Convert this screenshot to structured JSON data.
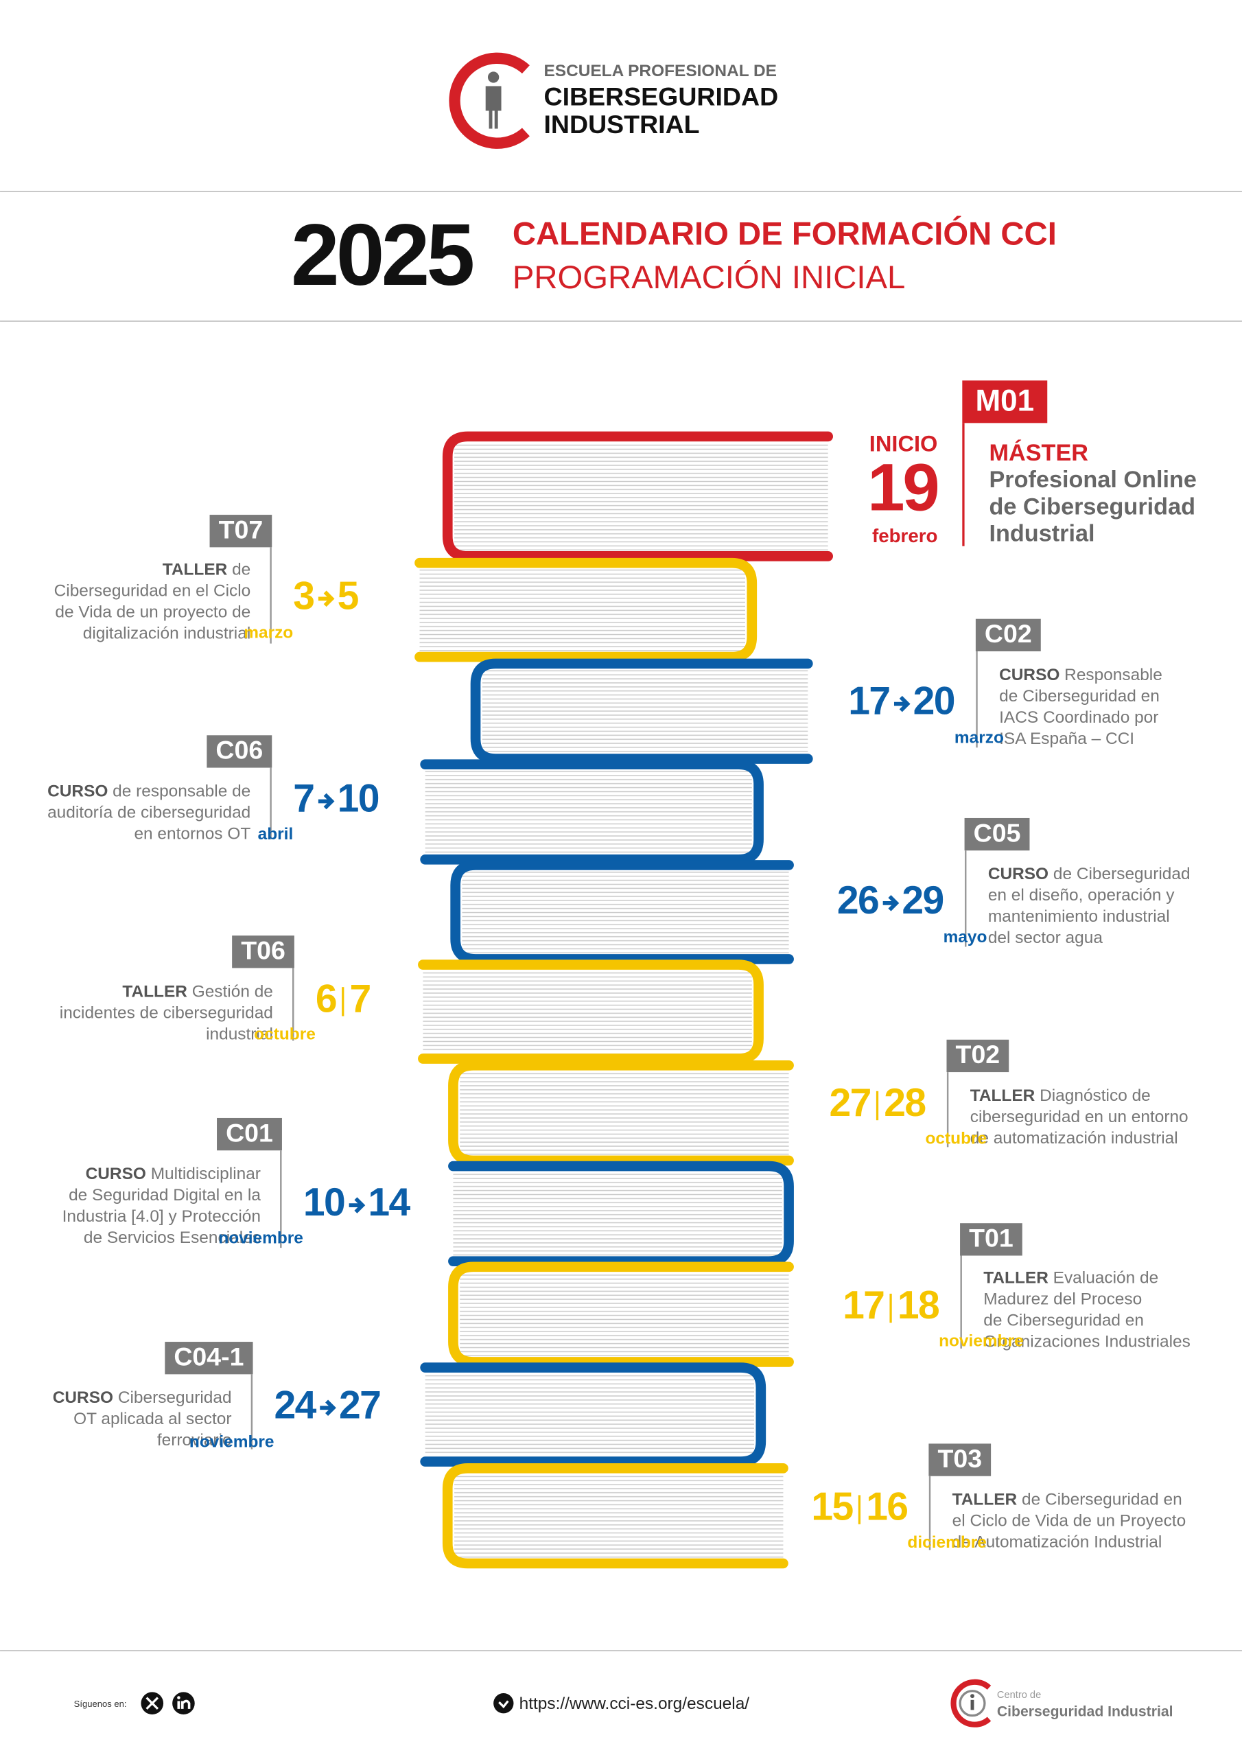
{
  "header": {
    "logo": [
      "ESCUELA PROFESIONAL DE",
      "CIBERSEGURIDAD",
      "INDUSTRIAL"
    ],
    "year": "2025",
    "title": "CALENDARIO DE FORMACIÓN CCI",
    "subtitle": "PROGRAMACIÓN INICIAL"
  },
  "master": {
    "code": "M01",
    "color": "#d42027",
    "start_label": "INICIO",
    "day": "19",
    "month": "febrero",
    "kind": "MÁSTER",
    "lines": [
      "Profesional Online",
      "de Ciberseguridad",
      "Industrial"
    ]
  },
  "events": [
    {
      "code": "T07",
      "color": "#f5c400",
      "kind": "TALLER",
      "lines": [
        "de",
        "Ciberseguridad en el Ciclo",
        "de Vida de un proyecto de",
        "digitalización industrial"
      ],
      "start": "3",
      "end": "5",
      "span": "arrow",
      "month": "marzo"
    },
    {
      "code": "C02",
      "color": "#0b5ea8",
      "kind": "CURSO",
      "lines": [
        "Responsable",
        "de Ciberseguridad en",
        "IACS Coordinado por",
        "ISA España – CCI"
      ],
      "start": "17",
      "end": "20",
      "span": "arrow",
      "month": "marzo"
    },
    {
      "code": "C06",
      "color": "#0b5ea8",
      "kind": "CURSO",
      "lines": [
        "de responsable de",
        "auditoría de ciberseguridad",
        "en entornos OT"
      ],
      "start": "7",
      "end": "10",
      "span": "arrow",
      "month": "abril"
    },
    {
      "code": "C05",
      "color": "#0b5ea8",
      "kind": "CURSO",
      "lines": [
        "de Ciberseguridad",
        "en el diseño, operación y",
        "mantenimiento industrial",
        "del sector agua"
      ],
      "start": "26",
      "end": "29",
      "span": "arrow",
      "month": "mayo"
    },
    {
      "code": "T06",
      "color": "#f5c400",
      "kind": "TALLER",
      "lines": [
        "Gestión de",
        "incidentes de ciberseguridad",
        "industrial"
      ],
      "start": "6",
      "end": "7",
      "span": "pair",
      "month": "octubre"
    },
    {
      "code": "T02",
      "color": "#f5c400",
      "kind": "TALLER",
      "lines": [
        "Diagnóstico de",
        "ciberseguridad en un entorno",
        "de automatización industrial"
      ],
      "start": "27",
      "end": "28",
      "span": "pair",
      "month": "octubre"
    },
    {
      "code": "C01",
      "color": "#0b5ea8",
      "kind": "CURSO",
      "lines": [
        "Multidisciplinar",
        "de Seguridad Digital en la",
        "Industria [4.0] y Protección",
        "de Servicios Esenciales"
      ],
      "start": "10",
      "end": "14",
      "span": "arrow",
      "month": "noviembre"
    },
    {
      "code": "T01",
      "color": "#f5c400",
      "kind": "TALLER",
      "lines": [
        "Evaluación de",
        "Madurez del Proceso",
        "de Ciberseguridad en",
        "Organizaciones Industriales"
      ],
      "start": "17",
      "end": "18",
      "span": "pair",
      "month": "noviembre"
    },
    {
      "code": "C04-1",
      "color": "#0b5ea8",
      "kind": "CURSO",
      "lines": [
        "Ciberseguridad",
        "OT aplicada al sector",
        "ferroviario"
      ],
      "start": "24",
      "end": "27",
      "span": "arrow",
      "month": "noviembre"
    },
    {
      "code": "T03",
      "color": "#f5c400",
      "kind": "TALLER",
      "lines": [
        "de Ciberseguridad en",
        "el Ciclo de Vida de un Proyecto",
        "de Automatización Industrial"
      ],
      "start": "15",
      "end": "16",
      "span": "pair",
      "month": "diciembre"
    }
  ],
  "footer": {
    "follow": "Síguenos en:",
    "url": "https://www.cci-es.org/escuela/",
    "logo": [
      "Centro de",
      "Ciberseguridad Industrial"
    ]
  }
}
